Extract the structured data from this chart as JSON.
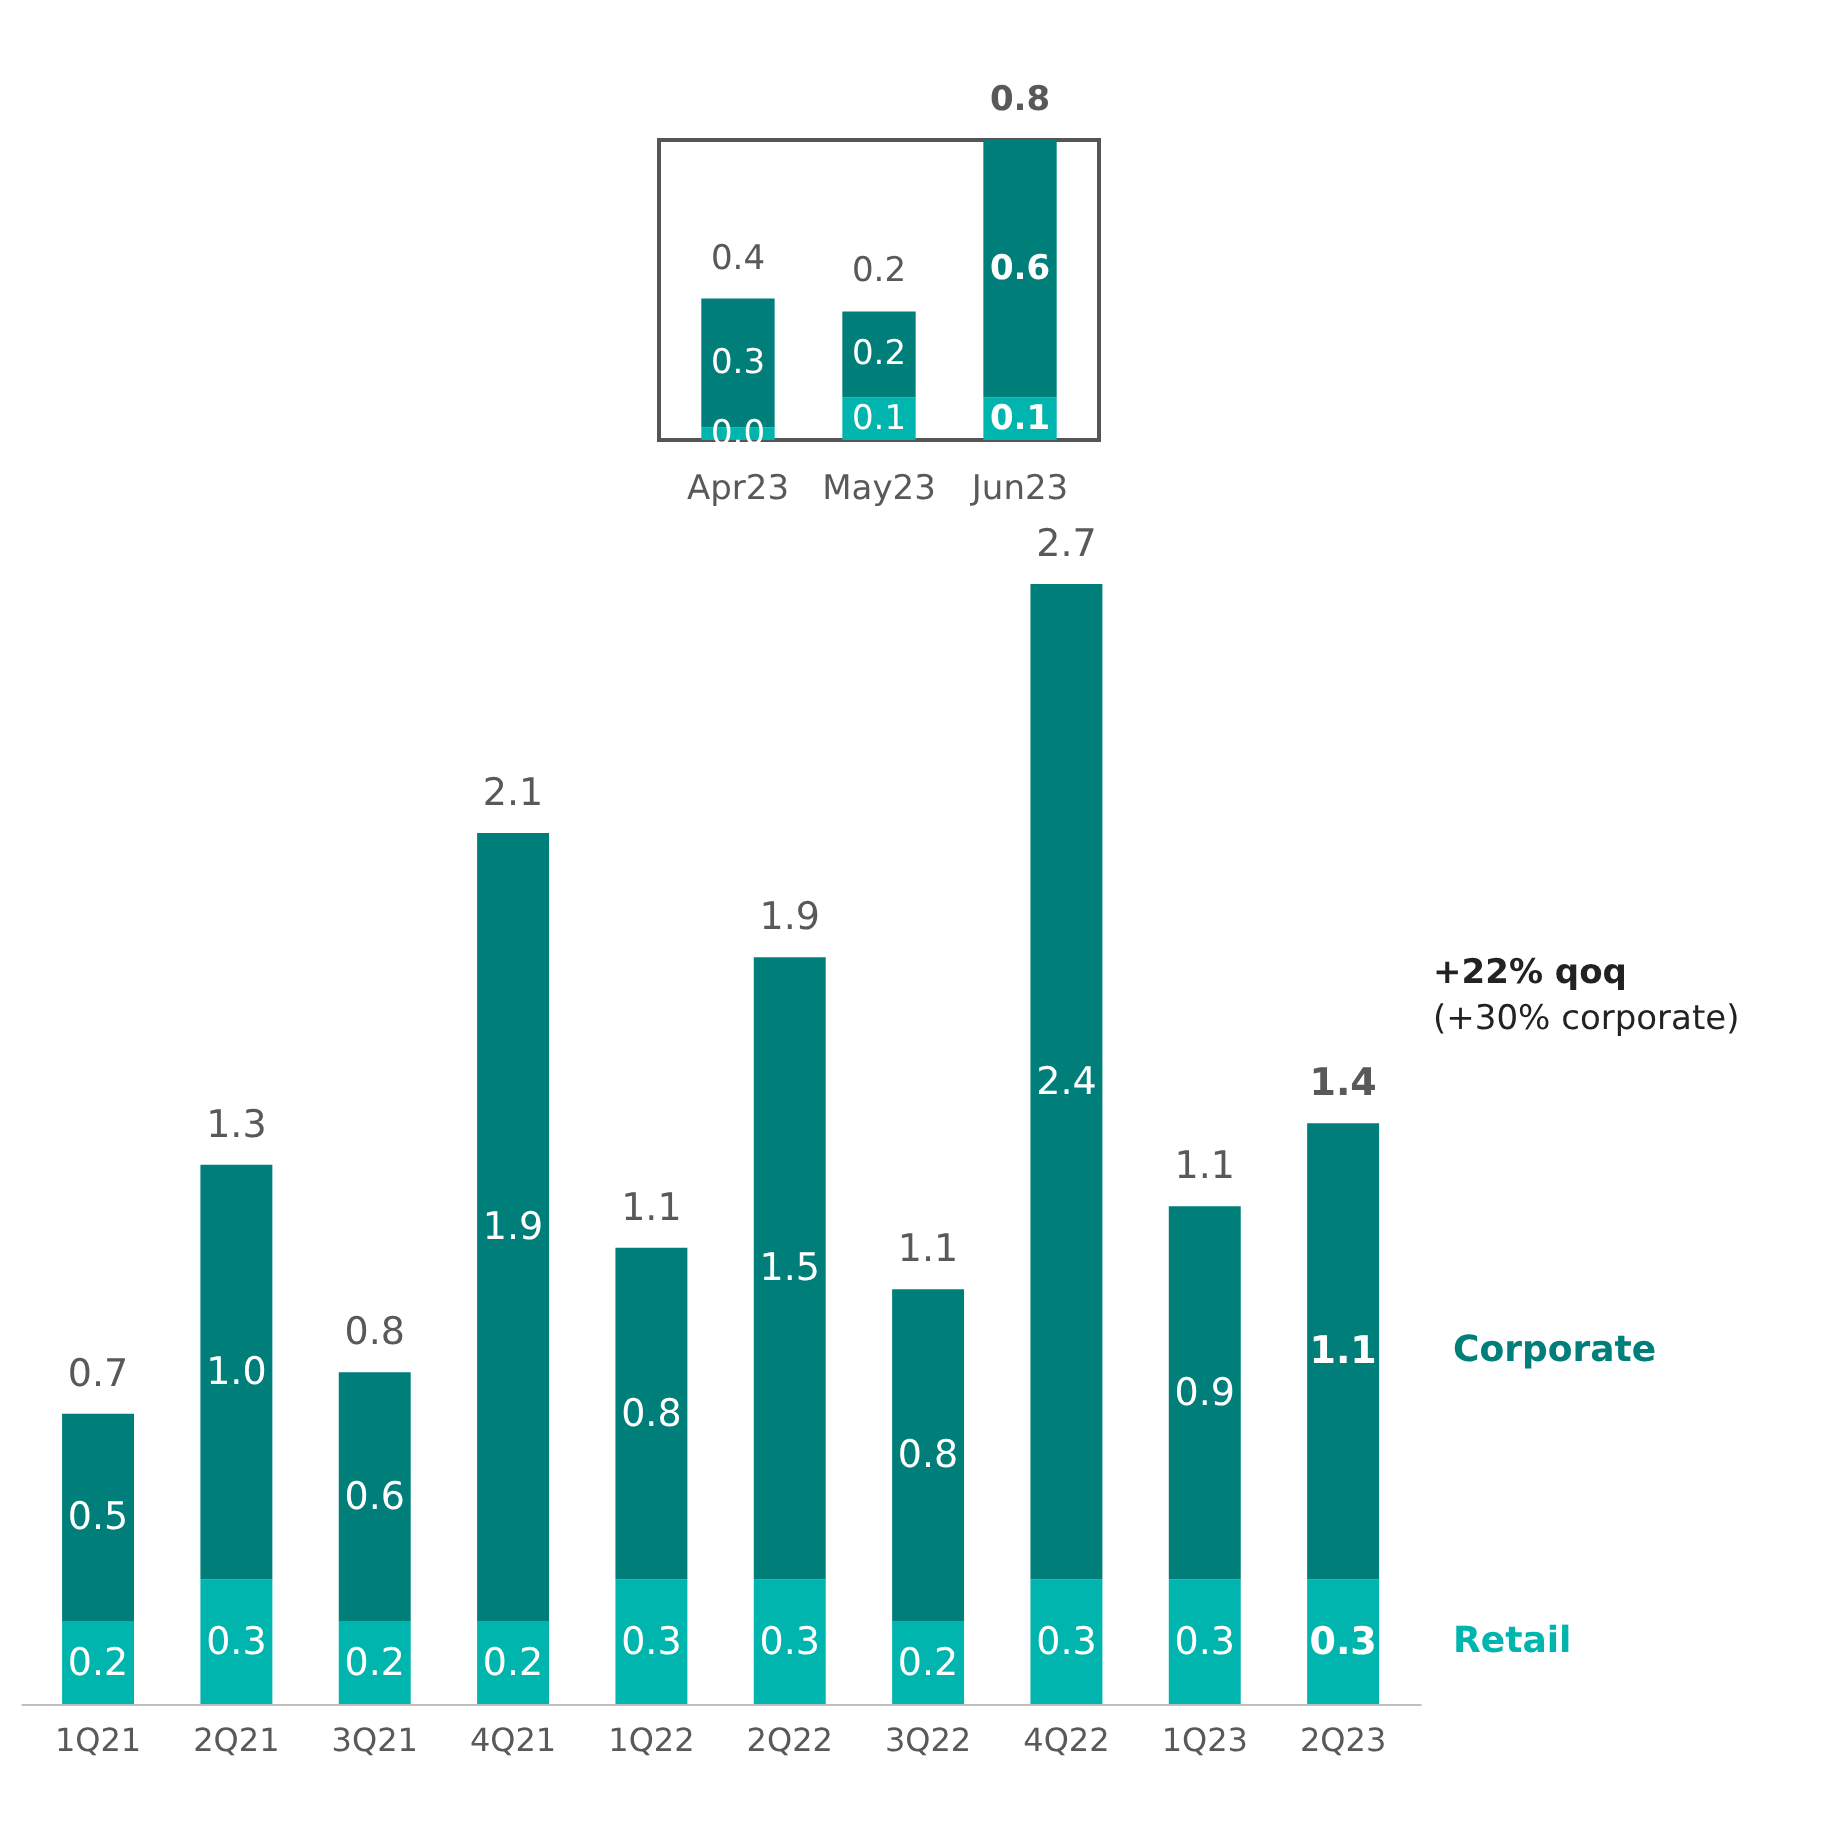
{
  "chart_data": [
    {
      "type": "bar",
      "stacked": true,
      "tick_labels": "x",
      "categories": [
        "Apr23",
        "May23",
        "Jun23"
      ],
      "series": [
        {
          "name": null,
          "color": "#00b5ad",
          "values": [
            0.03,
            0.1,
            0.1
          ],
          "value_labels": [
            "0.0",
            "0.1",
            "0.1"
          ]
        },
        {
          "name": null,
          "color": "#007e7a",
          "values": [
            0.3,
            0.2,
            0.6
          ],
          "value_labels": [
            "0.3",
            "0.2",
            "0.6"
          ]
        }
      ],
      "totals": [
        "0.4",
        "0.2",
        "0.8"
      ]
    },
    {
      "type": "bar",
      "stacked": true,
      "tick_labels": "x",
      "categories": [
        "1Q21",
        "2Q21",
        "3Q21",
        "4Q21",
        "1Q22",
        "2Q22",
        "3Q22",
        "4Q22",
        "1Q23",
        "2Q23"
      ],
      "series": [
        {
          "name": "Retail",
          "color": "#00b5ad",
          "values": [
            0.2,
            0.3,
            0.2,
            0.2,
            0.3,
            0.3,
            0.2,
            0.3,
            0.3,
            0.3
          ],
          "value_labels": [
            "0.2",
            "0.3",
            "0.2",
            "0.2",
            "0.3",
            "0.3",
            "0.2",
            "0.3",
            "0.3",
            "0.3"
          ]
        },
        {
          "name": "Corporate",
          "color": "#007e7a",
          "values": [
            0.5,
            1.0,
            0.6,
            1.9,
            0.8,
            1.5,
            0.8,
            2.4,
            0.9,
            1.1
          ],
          "value_labels": [
            "0.5",
            "1.0",
            "0.6",
            "1.9",
            "0.8",
            "1.5",
            "0.8",
            "2.4",
            "0.9",
            "1.1"
          ]
        }
      ],
      "totals": [
        "0.7",
        "1.3",
        "0.8",
        "2.1",
        "1.1",
        "1.9",
        "1.1",
        "2.7",
        "1.1",
        "1.4"
      ],
      "annotations": [
        "+22% qoq",
        "(+30% corporate)"
      ]
    }
  ]
}
